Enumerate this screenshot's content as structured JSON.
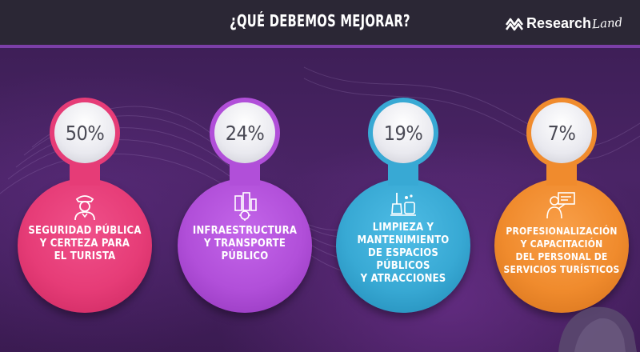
{
  "header": {
    "title": "¿QUÉ DEBEMOS MEJORAR?",
    "brand": "Research",
    "brand_script": "Land"
  },
  "cards": [
    {
      "percent": "50%",
      "label_lines": [
        "SEGURIDAD PÚBLICA",
        "Y CERTEZA PARA",
        "EL TURISTA"
      ],
      "color": "#e63c77",
      "icon": "police-officer-icon"
    },
    {
      "percent": "24%",
      "label_lines": [
        "INFRAESTRUCTURA",
        "Y TRANSPORTE",
        "PÚBLICO"
      ],
      "color": "#b14fd9",
      "icon": "city-buildings-gear-icon"
    },
    {
      "percent": "19%",
      "label_lines": [
        "LIMPIEZA Y",
        "MANTENIMIENTO",
        "DE ESPACIOS",
        "PÚBLICOS",
        "Y ATRACCIONES"
      ],
      "color": "#38a9d4",
      "icon": "cleaning-supplies-icon"
    },
    {
      "percent": "7%",
      "label_lines": [
        "PROFESIONALIZACIÓN",
        "Y CAPACITACIÓN",
        "DEL PERSONAL DE",
        "SERVICIOS TURÍSTICOS"
      ],
      "color": "#f08b2d",
      "icon": "trainer-presentation-icon"
    }
  ],
  "colors": {
    "header_bg": "#2b2735",
    "accent_bar": "#7b3fa7",
    "background": "#4a2466"
  }
}
